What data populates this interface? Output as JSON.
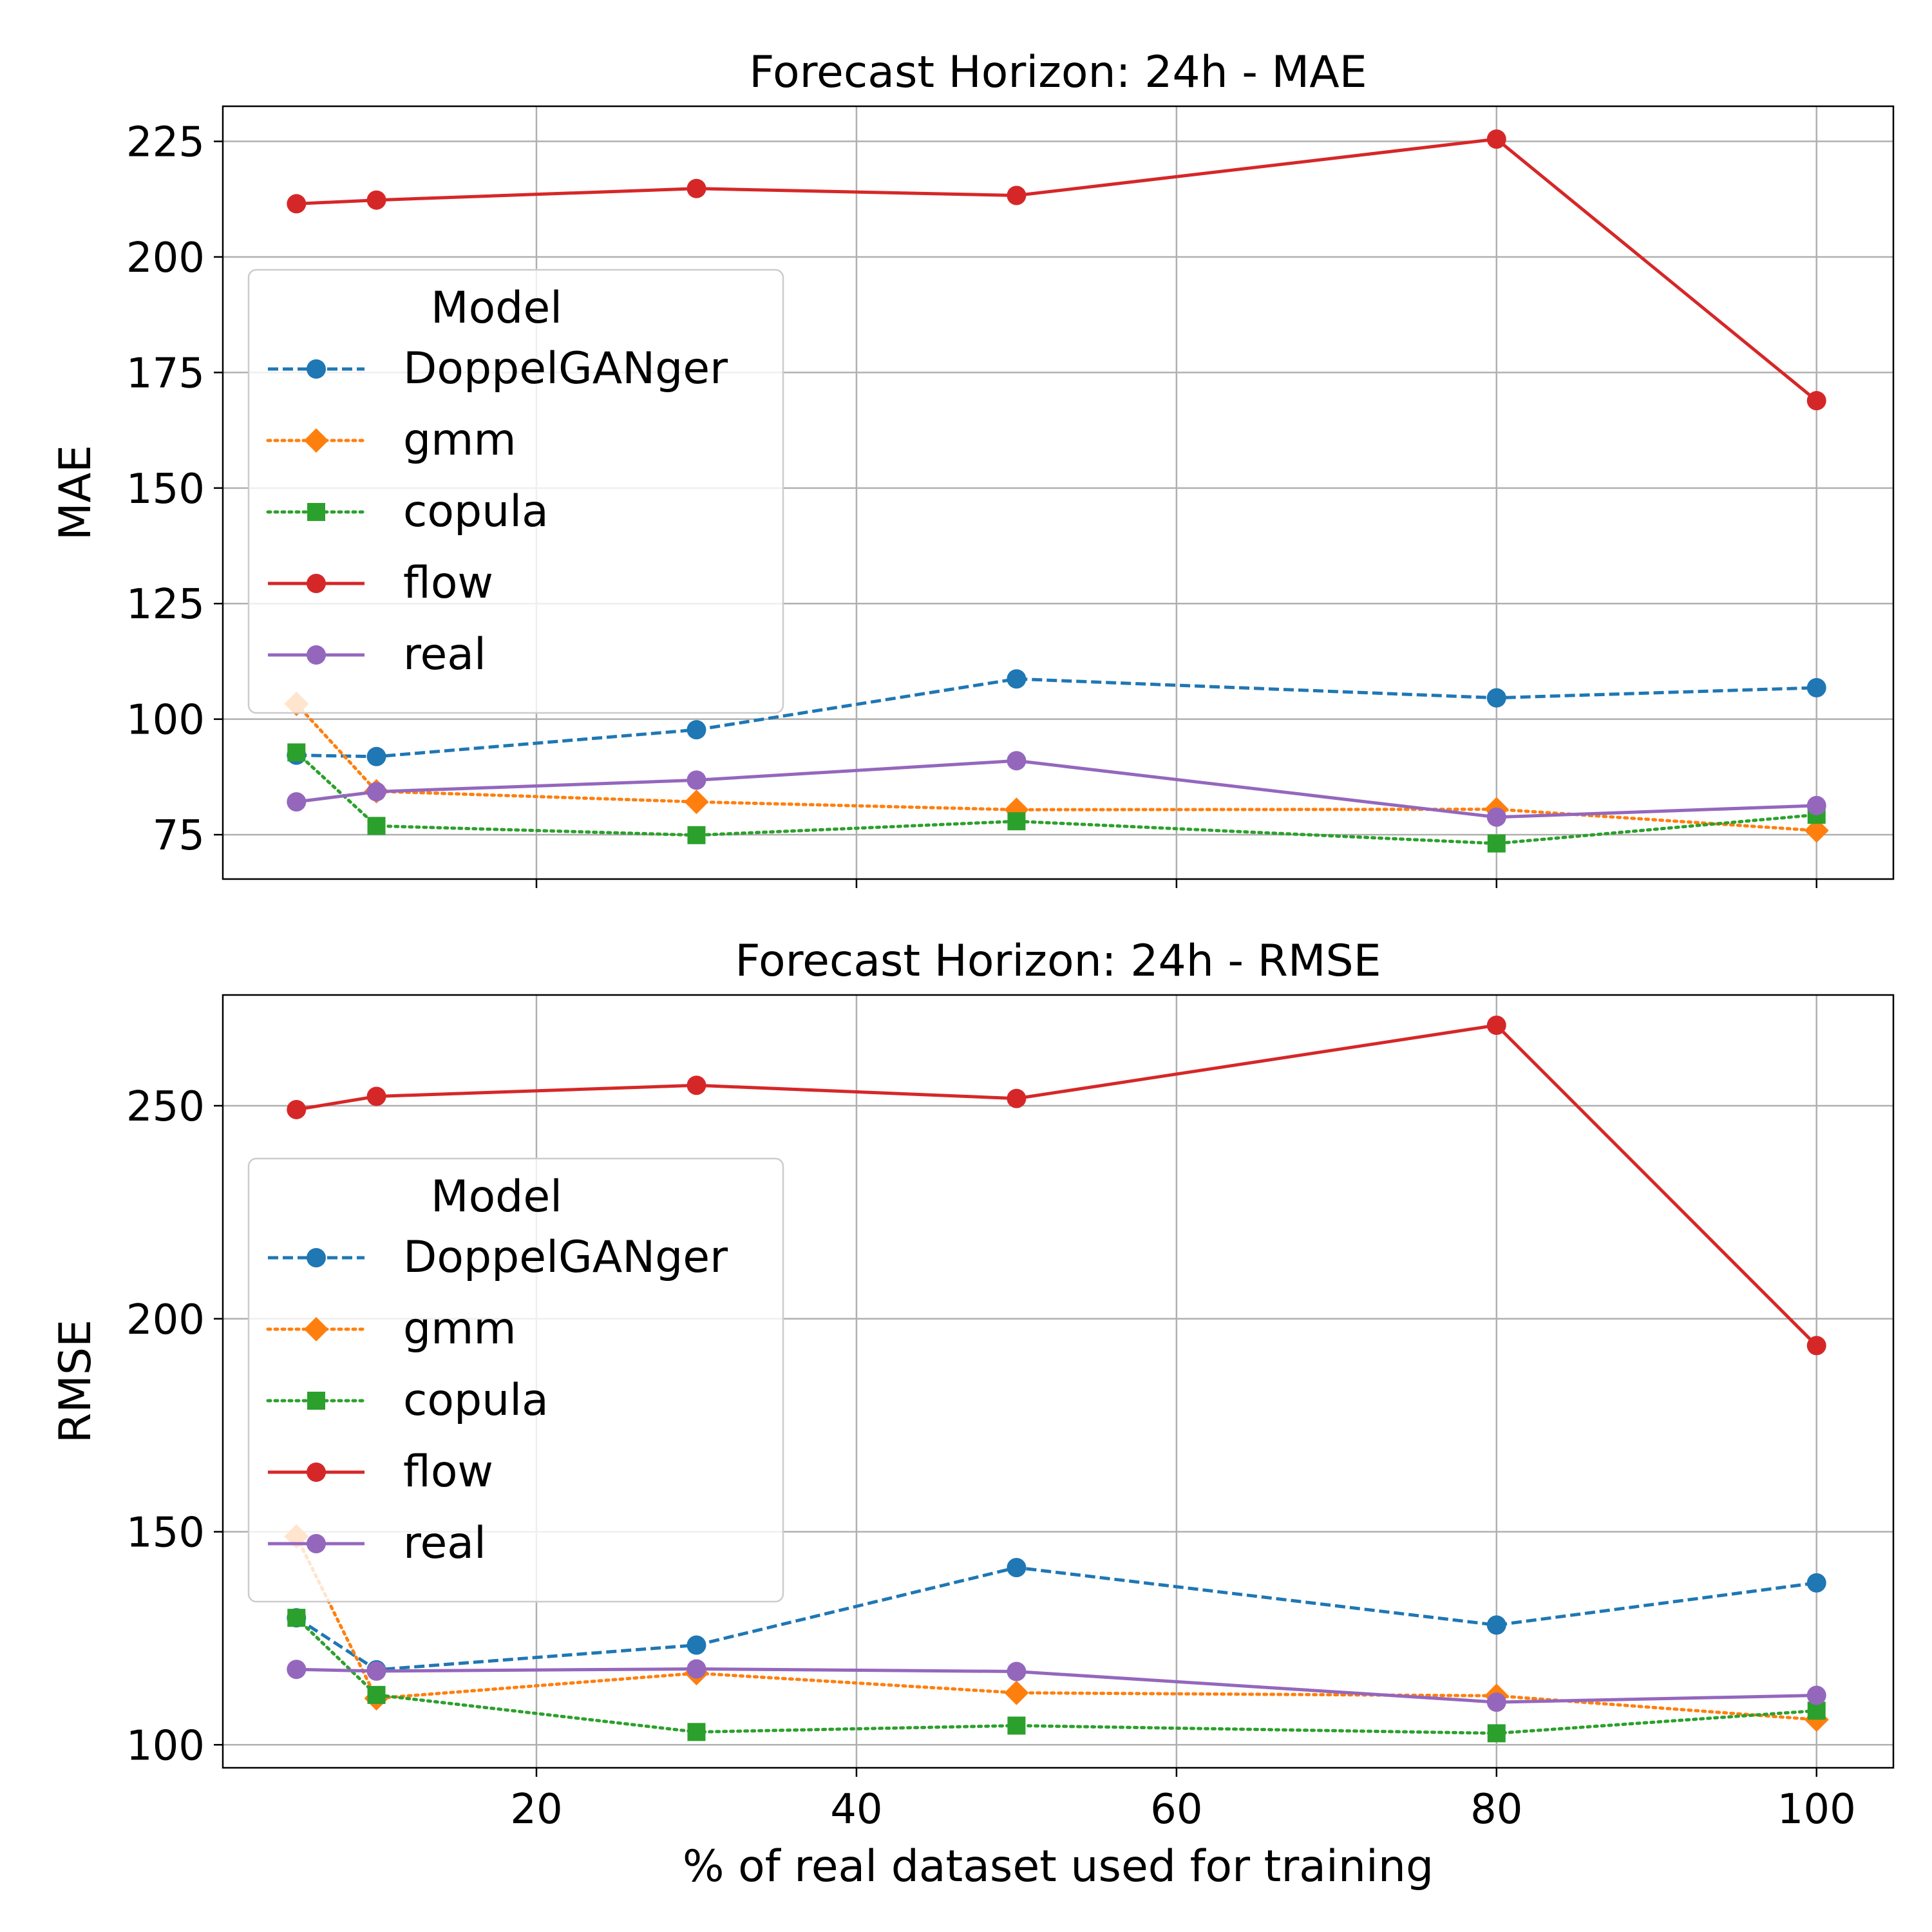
{
  "chart_data": [
    {
      "type": "line",
      "title": "Forecast Horizon: 24h - MAE",
      "xlabel": "",
      "ylabel": "MAE",
      "x": [
        5,
        10,
        30,
        50,
        80,
        100
      ],
      "xlim": [
        0.4,
        104.8
      ],
      "ylim": [
        65.4,
        232.6
      ],
      "xticks": [
        20,
        40,
        60,
        80,
        100
      ],
      "xtick_labels_visible": false,
      "yticks": [
        75,
        100,
        125,
        150,
        175,
        200,
        225
      ],
      "grid": true,
      "legend": {
        "title": "Model",
        "placement": "center-left"
      },
      "series": [
        {
          "name": "DoppelGANger",
          "color": "#1f77b4",
          "dash": "dashed",
          "marker": "circle",
          "values": [
            92.2,
            91.9,
            97.7,
            108.7,
            104.6,
            106.8
          ]
        },
        {
          "name": "gmm",
          "color": "#ff7f0e",
          "dash": "dotted",
          "marker": "diamond",
          "values": [
            103.3,
            84.4,
            82.1,
            80.4,
            80.5,
            75.9
          ]
        },
        {
          "name": "copula",
          "color": "#2ca02c",
          "dash": "dotted",
          "marker": "square",
          "values": [
            92.8,
            76.9,
            74.9,
            77.9,
            73.1,
            79.3
          ]
        },
        {
          "name": "flow",
          "color": "#d62728",
          "dash": "solid",
          "marker": "circle",
          "values": [
            211.5,
            212.3,
            214.8,
            213.3,
            225.5,
            168.9
          ]
        },
        {
          "name": "real",
          "color": "#9467bd",
          "dash": "solid",
          "marker": "circle",
          "values": [
            82.1,
            84.3,
            86.8,
            91.0,
            78.8,
            81.3
          ]
        }
      ]
    },
    {
      "type": "line",
      "title": "Forecast Horizon: 24h - RMSE",
      "xlabel": "% of real dataset used for training",
      "ylabel": "RMSE",
      "x": [
        5,
        10,
        30,
        50,
        80,
        100
      ],
      "xlim": [
        0.4,
        104.8
      ],
      "ylim": [
        94.6,
        276.0
      ],
      "xticks": [
        20,
        40,
        60,
        80,
        100
      ],
      "xtick_labels_visible": true,
      "yticks": [
        100,
        150,
        200,
        250
      ],
      "grid": true,
      "legend": {
        "title": "Model",
        "placement": "center-left"
      },
      "series": [
        {
          "name": "DoppelGANger",
          "color": "#1f77b4",
          "dash": "dashed",
          "marker": "circle",
          "values": [
            129.8,
            117.6,
            123.4,
            141.6,
            128.1,
            138.0
          ]
        },
        {
          "name": "gmm",
          "color": "#ff7f0e",
          "dash": "dotted",
          "marker": "diamond",
          "values": [
            148.9,
            110.9,
            116.8,
            112.2,
            111.5,
            105.9
          ]
        },
        {
          "name": "copula",
          "color": "#2ca02c",
          "dash": "dotted",
          "marker": "square",
          "values": [
            129.8,
            111.7,
            103.0,
            104.5,
            102.7,
            108.0
          ]
        },
        {
          "name": "flow",
          "color": "#d62728",
          "dash": "solid",
          "marker": "circle",
          "values": [
            249.1,
            252.2,
            254.8,
            251.7,
            268.9,
            193.7
          ]
        },
        {
          "name": "real",
          "color": "#9467bd",
          "dash": "solid",
          "marker": "circle",
          "values": [
            117.7,
            117.3,
            117.8,
            117.2,
            110.0,
            111.6
          ]
        }
      ]
    }
  ]
}
